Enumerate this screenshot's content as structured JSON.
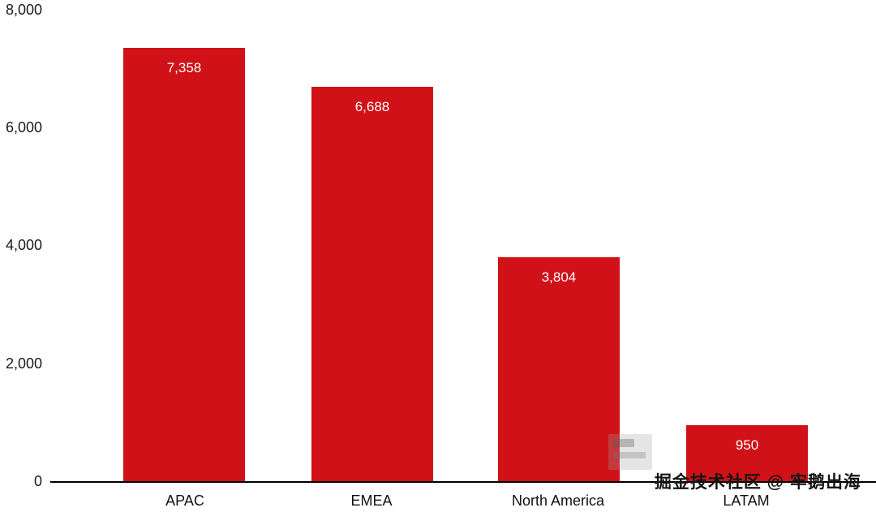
{
  "chart_data": {
    "type": "bar",
    "title": "",
    "xlabel": "",
    "ylabel": "",
    "categories": [
      "APAC",
      "EMEA",
      "North America",
      "LATAM"
    ],
    "values": [
      7358,
      6688,
      3804,
      950
    ],
    "value_labels": [
      "7,358",
      "6,688",
      "3,804",
      "950"
    ],
    "yticks": [
      "0",
      "2,000",
      "4,000",
      "6,000",
      "8,000"
    ],
    "ylim": [
      0,
      8000
    ],
    "bar_color": "#d01218",
    "bar_label_color": "#ffffff",
    "grid": "off",
    "legend": "none",
    "axis_line": "bottom-only"
  },
  "watermark": {
    "text": "掘金技术社区 @ 牢鹅出海"
  }
}
